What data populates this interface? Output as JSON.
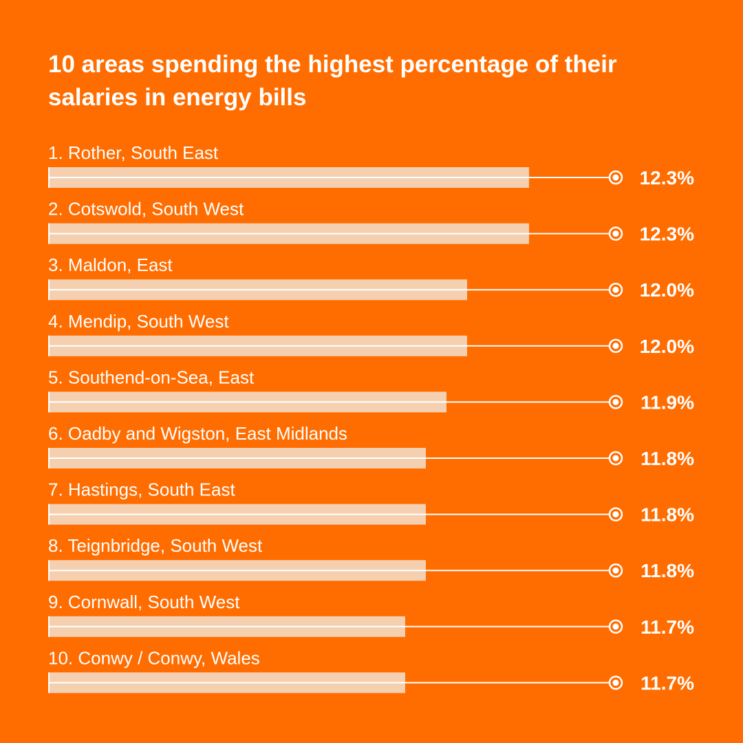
{
  "chart_data": {
    "type": "bar",
    "orientation": "horizontal",
    "title": "10 areas spending the highest percentage of their salaries in energy bills",
    "categories": [
      "1. Rother, South East",
      "2. Cotswold, South West",
      "3. Maldon, East",
      "4. Mendip, South West",
      "5. Southend-on-Sea, East",
      "6. Oadby and Wigston, East Midlands",
      "7. Hastings, South East",
      "8. Teignbridge, South West",
      "9. Cornwall, South West",
      "10. Conwy / Conwy, Wales"
    ],
    "values": [
      12.3,
      12.3,
      12.0,
      12.0,
      11.9,
      11.8,
      11.8,
      11.8,
      11.7,
      11.7
    ],
    "value_labels": [
      "12.3%",
      "12.3%",
      "12.0%",
      "12.0%",
      "11.9%",
      "11.8%",
      "11.8%",
      "11.8%",
      "11.7%",
      "11.7%"
    ],
    "xlim": [
      9.97,
      12.3
    ],
    "xlabel": "",
    "ylabel": "",
    "grid": false,
    "colors": {
      "background": "#FF6C00",
      "bar": "#F5D0B0",
      "line": "#FFFFFF"
    }
  }
}
